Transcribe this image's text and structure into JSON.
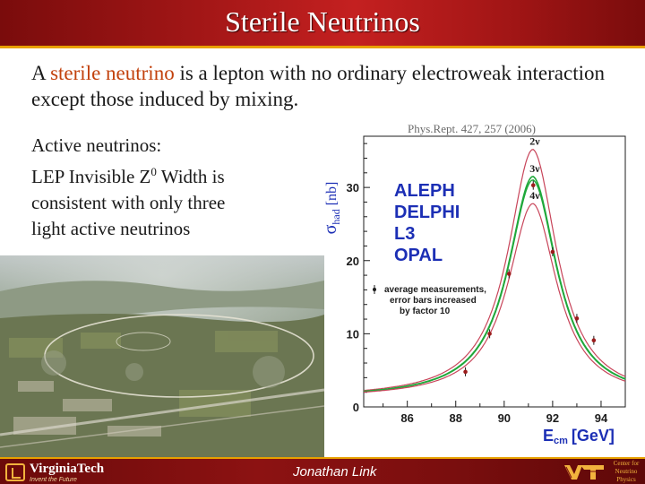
{
  "slide": {
    "title": "Sterile Neutrinos",
    "intro_pre": "A ",
    "intro_highlight": "sterile neutrino",
    "intro_post": " is a lepton with no ordinary electroweak interaction except those induced by mixing.",
    "active_line1": "Active neutrinos:",
    "active_line2_pre": "LEP Invisible Z",
    "active_line2_sup": "0",
    "active_line2_post": " Width is",
    "active_line3": "consistent with only three",
    "active_line4": "light active neutrinos",
    "reference": "Phys.Rept. 427, 257 (2006)"
  },
  "footer": {
    "university": "VirginiaTech",
    "university_tagline": "Invent the Future",
    "author": "Jonathan Link",
    "center_line1": "Center for",
    "center_line2": "Neutrino",
    "center_line3": "Physics"
  },
  "colors": {
    "title_bar": "#a11616",
    "accent_gold": "#e8a000",
    "highlight": "#c2410c",
    "plot_blue": "#1c2fb5",
    "curve_green": "#1fa83a",
    "curve_red": "#c8455a"
  },
  "chart_data": {
    "type": "line",
    "xlabel": "E",
    "xlabel_sub": "cm",
    "xlabel_unit": "[GeV]",
    "ylabel": "σ",
    "ylabel_sub": "had",
    "ylabel_unit": "[nb]",
    "xlim": [
      84.2,
      95
    ],
    "ylim": [
      0,
      37
    ],
    "x_ticks": [
      86,
      88,
      90,
      92,
      94
    ],
    "y_ticks": [
      0,
      10,
      20,
      30
    ],
    "experiments": [
      "ALEPH",
      "DELPHI",
      "L3",
      "OPAL"
    ],
    "annotation_lines": [
      "average measurements,",
      "error bars increased",
      "by factor 10"
    ],
    "series": [
      {
        "name": "2ν",
        "peak": 35.2
      },
      {
        "name": "3ν",
        "peak": 31.5
      },
      {
        "name": "4ν",
        "peak": 27.8
      }
    ],
    "measurements": {
      "x": [
        88.4,
        89.4,
        90.2,
        91.2,
        92.0,
        93.0,
        93.7
      ],
      "y": [
        4.8,
        10.0,
        18.2,
        30.3,
        21.2,
        12.1,
        9.1
      ]
    }
  }
}
